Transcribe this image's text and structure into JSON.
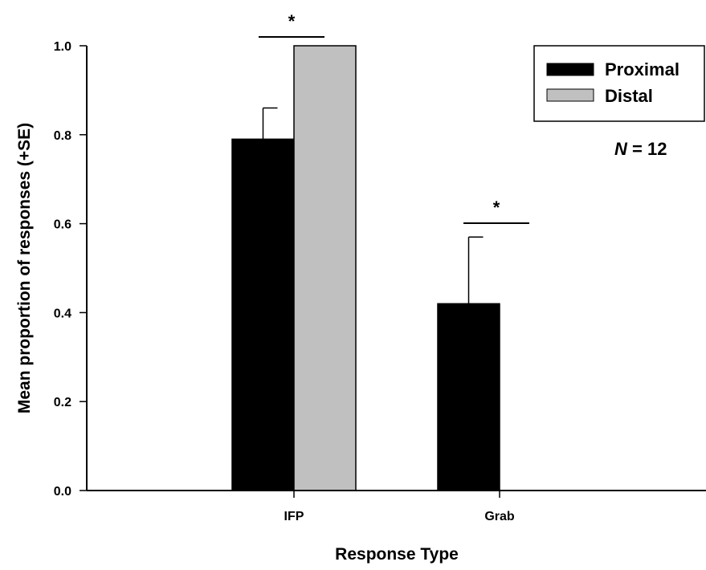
{
  "chart_data": {
    "type": "bar",
    "title": "",
    "xlabel": "Response Type",
    "ylabel": "Mean proportion of responses (+SE)",
    "ylim": [
      0,
      1.0
    ],
    "yticks": [
      "0.0",
      "0.2",
      "0.4",
      "0.6",
      "0.8",
      "1.0"
    ],
    "categories": [
      "IFP",
      "Grab"
    ],
    "series": [
      {
        "name": "Proximal",
        "color": "#000000",
        "values": [
          0.79,
          0.42
        ],
        "se": [
          0.07,
          0.15
        ]
      },
      {
        "name": "Distal",
        "color": "#c0c0c0",
        "values": [
          1.0,
          0.0
        ],
        "se": [
          0.0,
          0.0
        ]
      }
    ],
    "legend": {
      "position": "top-right",
      "items": [
        "Proximal",
        "Distal"
      ]
    },
    "annotations": {
      "n_prefix": "N",
      "n_suffix": " = 12",
      "significance": [
        {
          "category": "IFP",
          "label": "*"
        },
        {
          "category": "Grab",
          "label": "*"
        }
      ]
    },
    "grid": false
  }
}
